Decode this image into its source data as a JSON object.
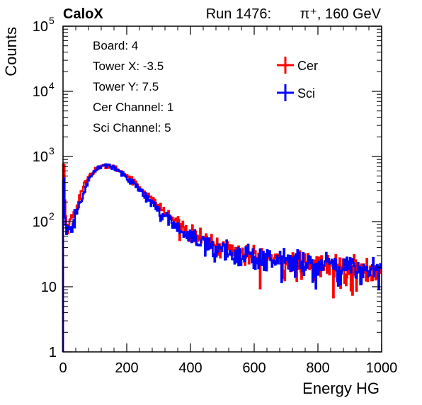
{
  "header": {
    "experiment": "CaloX",
    "run": "Run 1476:",
    "beam": "π⁺, 160 GeV"
  },
  "info_box": [
    "Board: 4",
    "Tower X: -3.5",
    "Tower Y: 7.5",
    "Cer Channel: 1",
    "Sci Channel: 5"
  ],
  "chart_data": {
    "type": "line",
    "style": "step-histogram",
    "xlabel": "Energy HG",
    "ylabel": "Counts",
    "xlim": [
      0,
      1000
    ],
    "ylim": [
      1,
      100000
    ],
    "yscale": "log",
    "x_ticks": [
      0,
      200,
      400,
      600,
      800,
      1000
    ],
    "y_ticks": [
      {
        "value": 1,
        "base": "1",
        "exp": ""
      },
      {
        "value": 10,
        "base": "10",
        "exp": ""
      },
      {
        "value": 100,
        "base": "10",
        "exp": "2"
      },
      {
        "value": 1000,
        "base": "10",
        "exp": "3"
      },
      {
        "value": 10000,
        "base": "10",
        "exp": "4"
      },
      {
        "value": 100000,
        "base": "10",
        "exp": "5"
      }
    ],
    "legend_position": "top-right",
    "series": [
      {
        "name": "Cer",
        "color": "#ff0000",
        "x": [
          0,
          2,
          5,
          10,
          20,
          30,
          40,
          50,
          60,
          70,
          80,
          90,
          100,
          110,
          120,
          130,
          140,
          150,
          160,
          170,
          180,
          190,
          200,
          220,
          240,
          260,
          280,
          300,
          320,
          340,
          360,
          380,
          400,
          420,
          440,
          460,
          480,
          500,
          520,
          540,
          560,
          580,
          600,
          620,
          640,
          660,
          680,
          700,
          720,
          740,
          760,
          780,
          800,
          820,
          840,
          860,
          880,
          900,
          920,
          940,
          960,
          980,
          1000
        ],
        "values": [
          1,
          750,
          300,
          80,
          95,
          120,
          160,
          220,
          300,
          390,
          480,
          560,
          620,
          660,
          690,
          700,
          700,
          690,
          670,
          640,
          600,
          560,
          520,
          430,
          340,
          270,
          215,
          175,
          140,
          115,
          95,
          80,
          68,
          60,
          53,
          48,
          44,
          41,
          38,
          35,
          33,
          31,
          29,
          28,
          27,
          26,
          25,
          24,
          23,
          23,
          22,
          22,
          21,
          21,
          20,
          20,
          20,
          19,
          19,
          18,
          18,
          18,
          17
        ]
      },
      {
        "name": "Sci",
        "color": "#0000ff",
        "x": [
          0,
          2,
          5,
          10,
          20,
          30,
          40,
          50,
          60,
          70,
          80,
          90,
          100,
          110,
          120,
          130,
          140,
          150,
          160,
          170,
          180,
          190,
          200,
          220,
          240,
          260,
          280,
          300,
          320,
          340,
          360,
          380,
          400,
          420,
          440,
          460,
          480,
          500,
          520,
          540,
          560,
          580,
          600,
          620,
          640,
          660,
          680,
          700,
          720,
          740,
          760,
          780,
          800,
          820,
          840,
          860,
          880,
          900,
          920,
          940,
          960,
          980,
          1000
        ],
        "values": [
          1,
          450,
          150,
          55,
          70,
          90,
          120,
          170,
          240,
          330,
          420,
          520,
          600,
          660,
          700,
          720,
          720,
          700,
          670,
          630,
          580,
          530,
          480,
          390,
          305,
          240,
          190,
          150,
          120,
          98,
          82,
          70,
          60,
          52,
          46,
          42,
          39,
          37,
          35,
          33,
          31,
          30,
          29,
          28,
          27,
          26,
          25,
          25,
          24,
          23,
          23,
          22,
          22,
          21,
          21,
          20,
          20,
          20,
          19,
          19,
          18,
          18,
          17
        ]
      }
    ]
  }
}
